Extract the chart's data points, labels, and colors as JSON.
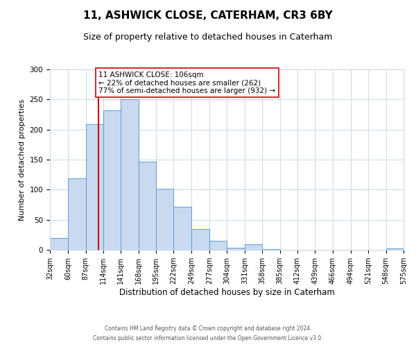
{
  "title": "11, ASHWICK CLOSE, CATERHAM, CR3 6BY",
  "subtitle": "Size of property relative to detached houses in Caterham",
  "xlabel": "Distribution of detached houses by size in Caterham",
  "ylabel": "Number of detached properties",
  "bin_edges": [
    32,
    60,
    87,
    114,
    141,
    168,
    195,
    222,
    249,
    277,
    304,
    331,
    358,
    385,
    412,
    439,
    466,
    494,
    521,
    548,
    575
  ],
  "bin_counts": [
    20,
    119,
    209,
    232,
    250,
    147,
    101,
    72,
    35,
    15,
    3,
    9,
    1,
    0,
    0,
    0,
    0,
    0,
    0,
    2
  ],
  "bar_facecolor": "#c9d9f0",
  "bar_edgecolor": "#5b9bd5",
  "vline_color": "#cc0000",
  "vline_x": 106,
  "annotation_text": "11 ASHWICK CLOSE: 106sqm\n← 22% of detached houses are smaller (262)\n77% of semi-detached houses are larger (932) →",
  "annotation_box_edgecolor": "#cc0000",
  "annotation_box_facecolor": "#ffffff",
  "ylim": [
    0,
    300
  ],
  "yticks": [
    0,
    50,
    100,
    150,
    200,
    250,
    300
  ],
  "xtick_labels": [
    "32sqm",
    "60sqm",
    "87sqm",
    "114sqm",
    "141sqm",
    "168sqm",
    "195sqm",
    "222sqm",
    "249sqm",
    "277sqm",
    "304sqm",
    "331sqm",
    "358sqm",
    "385sqm",
    "412sqm",
    "439sqm",
    "466sqm",
    "494sqm",
    "521sqm",
    "548sqm",
    "575sqm"
  ],
  "footer_line1": "Contains HM Land Registry data © Crown copyright and database right 2024.",
  "footer_line2": "Contains public sector information licensed under the Open Government Licence v3.0.",
  "background_color": "#ffffff",
  "grid_color": "#c8d8e8",
  "title_fontsize": 11,
  "subtitle_fontsize": 9,
  "ylabel_fontsize": 8,
  "xlabel_fontsize": 8.5,
  "tick_fontsize": 7,
  "annotation_fontsize": 7.5,
  "footer_fontsize": 5.5
}
